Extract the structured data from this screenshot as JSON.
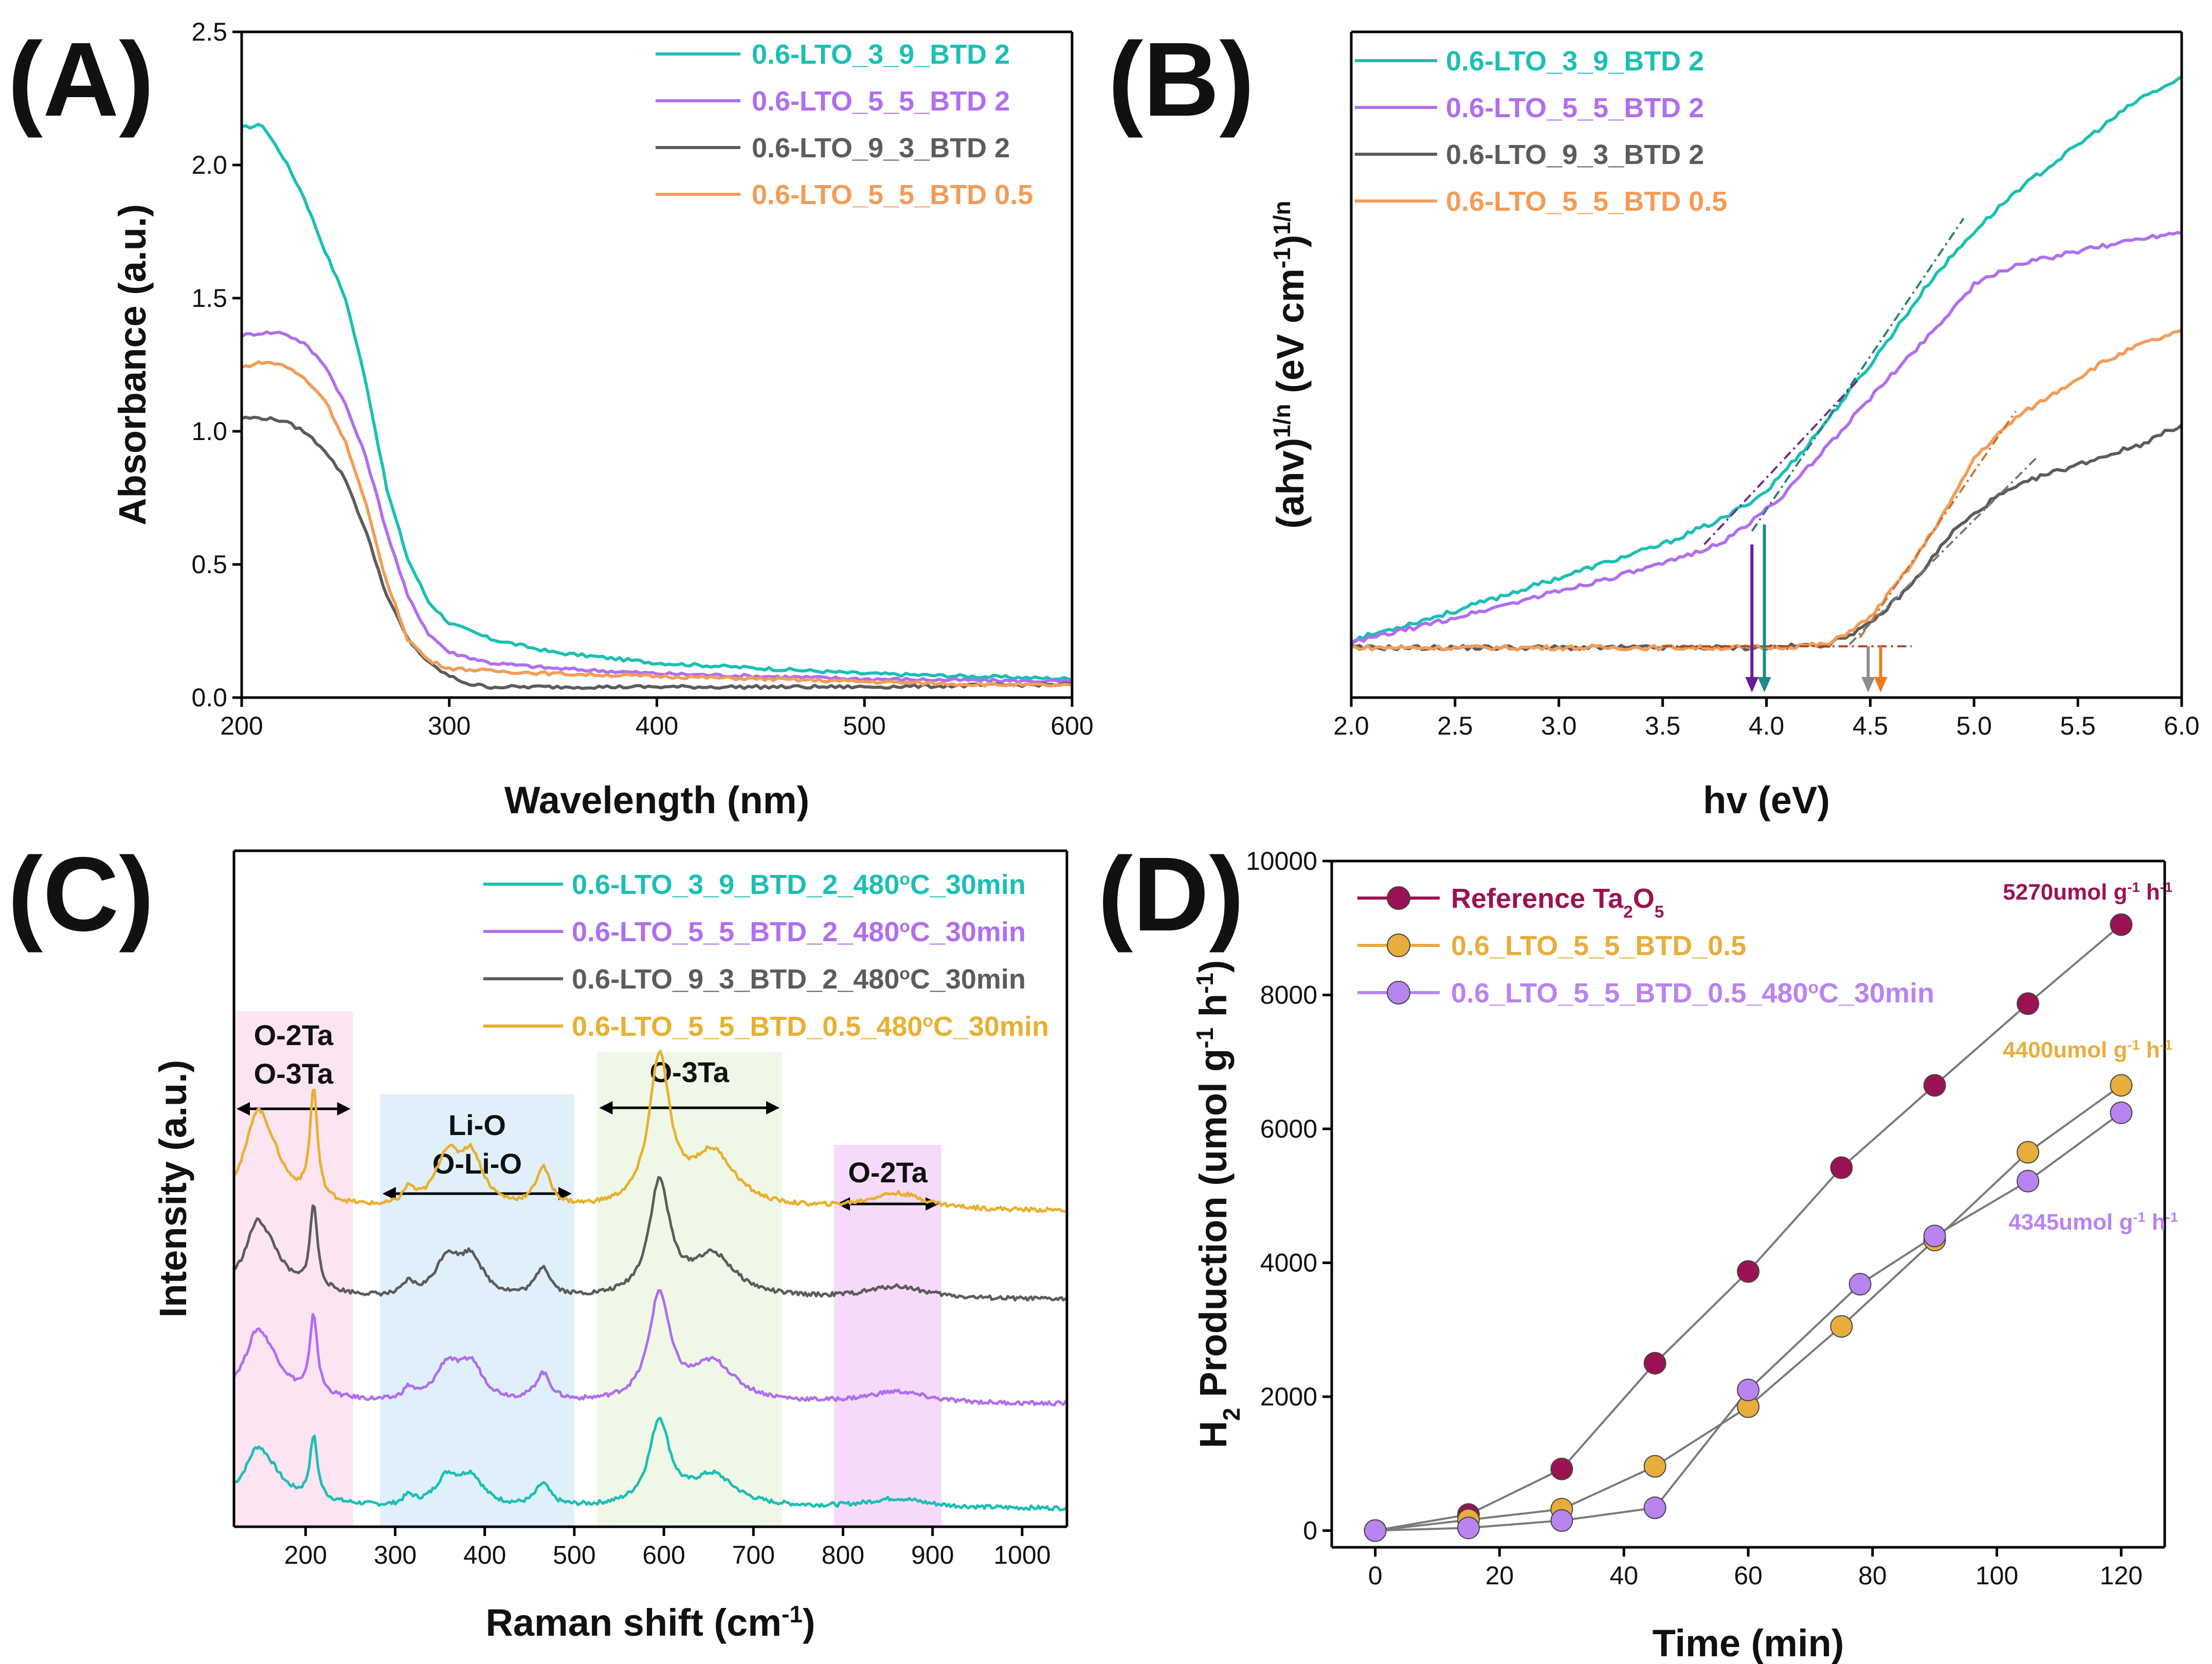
{
  "chart_data": [
    {
      "id": "A",
      "panel_label": "(A)",
      "type": "line",
      "xlabel": "Wavelength (nm)",
      "ylabel": "Absorbance (a.u.)",
      "xlim": [
        200,
        600
      ],
      "ylim": [
        0,
        2.5
      ],
      "xticks": [
        200,
        300,
        400,
        500,
        600
      ],
      "yticks": [
        0.0,
        0.5,
        1.0,
        1.5,
        2.0,
        2.5
      ],
      "xtick_labels": [
        "200",
        "300",
        "400",
        "500",
        "600"
      ],
      "ytick_labels": [
        "0.0",
        "0.5",
        "1.0",
        "1.5",
        "2.0",
        "2.5"
      ],
      "legend_position": "top-right",
      "series": [
        {
          "name": "0.6-LTO_3_9_BTD 2",
          "color": "#1cbfb4",
          "x": [
            200,
            210,
            220,
            230,
            240,
            250,
            260,
            270,
            280,
            290,
            300,
            320,
            350,
            400,
            450,
            500,
            550,
            600
          ],
          "y": [
            2.14,
            2.15,
            2.03,
            1.88,
            1.68,
            1.5,
            1.18,
            0.78,
            0.52,
            0.36,
            0.28,
            0.22,
            0.17,
            0.13,
            0.11,
            0.09,
            0.08,
            0.07
          ]
        },
        {
          "name": "0.6-LTO_5_5_BTD 2",
          "color": "#b06ef0",
          "x": [
            200,
            210,
            220,
            230,
            240,
            250,
            260,
            270,
            280,
            290,
            300,
            320,
            350,
            400,
            450,
            500,
            550,
            600
          ],
          "y": [
            1.36,
            1.37,
            1.37,
            1.33,
            1.25,
            1.1,
            0.9,
            0.62,
            0.38,
            0.24,
            0.17,
            0.13,
            0.11,
            0.09,
            0.08,
            0.07,
            0.065,
            0.06
          ]
        },
        {
          "name": "0.6-LTO_9_3_BTD 2",
          "color": "#5c5c5c",
          "x": [
            200,
            210,
            220,
            230,
            240,
            250,
            260,
            270,
            280,
            290,
            300,
            310,
            320,
            350,
            400,
            450,
            500,
            550,
            600
          ],
          "y": [
            1.05,
            1.05,
            1.04,
            1.0,
            0.93,
            0.82,
            0.62,
            0.38,
            0.22,
            0.13,
            0.08,
            0.05,
            0.04,
            0.04,
            0.04,
            0.04,
            0.04,
            0.045,
            0.05
          ]
        },
        {
          "name": "0.6-LTO_5_5_BTD 0.5",
          "color": "#f39c58",
          "x": [
            200,
            210,
            220,
            230,
            240,
            250,
            260,
            270,
            280,
            290,
            300,
            320,
            350,
            400,
            450,
            500,
            550,
            600
          ],
          "y": [
            1.24,
            1.26,
            1.25,
            1.2,
            1.12,
            0.96,
            0.72,
            0.43,
            0.22,
            0.14,
            0.11,
            0.1,
            0.09,
            0.08,
            0.07,
            0.06,
            0.05,
            0.045
          ]
        }
      ]
    },
    {
      "id": "B",
      "panel_label": "(B)",
      "type": "line",
      "xlabel": "hv (eV)",
      "ylabel": "(ahv)1/n (eV cm-1)1/n",
      "ylabel_parts": {
        "a": "(ahv)",
        "a_sup": "1/n",
        "b": " (eV cm",
        "b_sup": "-1",
        "c": ")",
        "c_sup": "1/n"
      },
      "xlim": [
        2.0,
        6.0
      ],
      "ylim": [
        0,
        1
      ],
      "xticks": [
        2.0,
        2.5,
        3.0,
        3.5,
        4.0,
        4.5,
        5.0,
        5.5,
        6.0
      ],
      "xtick_labels": [
        "2.0",
        "2.5",
        "3.0",
        "3.5",
        "4.0",
        "4.5",
        "5.0",
        "5.5",
        "6.0"
      ],
      "legend_position": "top-left",
      "band_gap_arrows_eV": [
        3.93,
        3.99,
        4.49,
        4.55
      ],
      "series": [
        {
          "name": "0.6-LTO_3_9_BTD 2",
          "color": "#1cbfb4",
          "x": [
            2.0,
            2.5,
            3.0,
            3.5,
            3.8,
            4.0,
            4.2,
            4.5,
            4.8,
            5.0,
            5.2,
            5.5,
            5.8,
            6.0
          ],
          "y": [
            0.086,
            0.13,
            0.18,
            0.23,
            0.27,
            0.31,
            0.38,
            0.5,
            0.63,
            0.7,
            0.76,
            0.83,
            0.9,
            0.93
          ]
        },
        {
          "name": "0.6-LTO_5_5_BTD 2",
          "color": "#b06ef0",
          "x": [
            2.0,
            2.5,
            3.0,
            3.5,
            3.8,
            3.95,
            4.1,
            4.3,
            4.5,
            4.8,
            5.0,
            5.2,
            5.5,
            5.8,
            6.0
          ],
          "y": [
            0.082,
            0.12,
            0.16,
            0.2,
            0.235,
            0.27,
            0.31,
            0.38,
            0.45,
            0.55,
            0.62,
            0.65,
            0.67,
            0.69,
            0.7
          ]
        },
        {
          "name": "0.6-LTO_9_3_BTD 2",
          "color": "#5c5c5c",
          "x": [
            2.0,
            3.0,
            4.0,
            4.3,
            4.5,
            4.7,
            4.9,
            5.1,
            5.3,
            5.5,
            5.8,
            6.0
          ],
          "y": [
            0.075,
            0.075,
            0.075,
            0.08,
            0.11,
            0.17,
            0.25,
            0.3,
            0.33,
            0.35,
            0.38,
            0.41
          ]
        },
        {
          "name": "0.6-LTO_5_5_BTD 0.5",
          "color": "#f39c58",
          "x": [
            2.0,
            3.0,
            4.0,
            4.3,
            4.5,
            4.7,
            4.9,
            5.0,
            5.2,
            5.4,
            5.6,
            5.8,
            6.0
          ],
          "y": [
            0.075,
            0.075,
            0.075,
            0.08,
            0.12,
            0.2,
            0.3,
            0.36,
            0.42,
            0.46,
            0.5,
            0.53,
            0.55
          ]
        }
      ]
    },
    {
      "id": "C",
      "panel_label": "(C)",
      "type": "line",
      "xlabel": "Raman shift (cm-1)",
      "xlabel_parts": {
        "a": "Raman shift (cm",
        "sup": "-1",
        "b": ")"
      },
      "ylabel": "Intensity (a.u.)",
      "xlim": [
        120,
        1050
      ],
      "ylim": [
        0,
        1
      ],
      "xticks": [
        200,
        300,
        400,
        500,
        600,
        700,
        800,
        900,
        1000
      ],
      "xtick_labels": [
        "200",
        "300",
        "400",
        "500",
        "600",
        "700",
        "800",
        "900",
        "1000"
      ],
      "legend_position": "top-right",
      "regions": [
        {
          "label_lines": [
            "O-2Ta",
            "O-3Ta"
          ],
          "x0": 120,
          "x1": 253,
          "color": "#fde4f2"
        },
        {
          "label_lines": [
            "Li-O",
            "O-Li-O"
          ],
          "x0": 283,
          "x1": 500,
          "color": "#dff0fb"
        },
        {
          "label_lines": [
            "O-3Ta"
          ],
          "x0": 525,
          "x1": 732,
          "color": "#eff8e7"
        },
        {
          "label_lines": [
            "O-2Ta"
          ],
          "x0": 790,
          "x1": 910,
          "color": "#f6dafa"
        }
      ],
      "series": [
        {
          "name": "0.6-LTO_3_9_BTD_2_480°C_30min",
          "name_parts": [
            "0.6-LTO_3_9_BTD_2_480",
            "o",
            "C_30min"
          ],
          "color": "#1cbfb4",
          "offset": 0.0,
          "scale": 0.6
        },
        {
          "name": "0.6-LTO_5_5_BTD_2_480°C_30min",
          "name_parts": [
            "0.6-LTO_5_5_BTD_2_480",
            "o",
            "C_30min"
          ],
          "color": "#b06ef0",
          "offset": 0.2,
          "scale": 0.75
        },
        {
          "name": "0.6-LTO_9_3_BTD_2_480°C_30min",
          "name_parts": [
            "0.6-LTO_9_3_BTD_2_480",
            "o",
            "C_30min"
          ],
          "color": "#5c5c5c",
          "offset": 0.4,
          "scale": 0.8
        },
        {
          "name": "0.6-LTO_5_5_BTD_0.5_480°C_30min",
          "name_parts": [
            "0.6-LTO_5_5_BTD_0.5_480",
            "o",
            "C_30min"
          ],
          "color": "#e8b030",
          "offset": 0.57,
          "scale": 1.05
        }
      ],
      "peaks_cm-1": [
        [
          145,
          0.12,
          15
        ],
        [
          160,
          0.07,
          20
        ],
        [
          209,
          0.2,
          5
        ],
        [
          315,
          0.03,
          8
        ],
        [
          358,
          0.09,
          16
        ],
        [
          385,
          0.09,
          16
        ],
        [
          465,
          0.07,
          10
        ],
        [
          595,
          0.27,
          14
        ],
        [
          655,
          0.1,
          30
        ],
        [
          860,
          0.03,
          40
        ]
      ]
    },
    {
      "id": "D",
      "panel_label": "(D)",
      "type": "line",
      "xlabel": "Time (min)",
      "ylabel": "H2 Production (umol g-1 h-1)",
      "ylabel_parts": {
        "a": "H",
        "a_sub": "2",
        "b": " Production (umol g",
        "b_sup": "-1",
        "c": " h",
        "c_sup": "-1",
        "d": ")"
      },
      "xlim": [
        -7,
        127
      ],
      "ylim": [
        -250,
        10000
      ],
      "xticks": [
        0,
        20,
        40,
        60,
        80,
        100,
        120
      ],
      "yticks": [
        0,
        2000,
        4000,
        6000,
        8000,
        10000
      ],
      "xtick_labels": [
        "0",
        "20",
        "40",
        "60",
        "80",
        "100",
        "120"
      ],
      "ytick_labels": [
        "0",
        "2000",
        "4000",
        "6000",
        "8000",
        "10000"
      ],
      "legend_position": "top-left",
      "series": [
        {
          "name": "Reference Ta2O5",
          "name_parts": [
            "Reference Ta",
            "2",
            "O",
            "5"
          ],
          "color": "#9b1254",
          "x": [
            0,
            15,
            30,
            45,
            60,
            75,
            90,
            105,
            120
          ],
          "y": [
            0,
            240,
            920,
            2500,
            3870,
            5420,
            6650,
            7870,
            9050
          ]
        },
        {
          "name": "0.6_LTO_5_5_BTD_0.5",
          "color": "#e8ad3c",
          "x": [
            0,
            15,
            30,
            45,
            60,
            75,
            90,
            105,
            120
          ],
          "y": [
            0,
            160,
            320,
            960,
            1850,
            3050,
            4340,
            5650,
            6650
          ]
        },
        {
          "name": "0.6_LTO_5_5_BTD_0.5_480°C_30min",
          "name_parts": [
            "0.6_LTO_5_5_BTD_0.5_480",
            "o",
            "C_30min"
          ],
          "color": "#b983f0",
          "x": [
            0,
            15,
            30,
            45,
            60,
            78,
            90,
            105,
            120
          ],
          "y": [
            0,
            40,
            150,
            340,
            2100,
            3680,
            4400,
            5220,
            6240
          ]
        }
      ],
      "annotations": [
        {
          "text_parts": [
            "5270umol g",
            "-1",
            " h",
            "-1"
          ],
          "color": "#9b1254"
        },
        {
          "text_parts": [
            "4400umol g",
            "-1",
            " h",
            "-1"
          ],
          "color": "#e8ad3c"
        },
        {
          "text_parts": [
            "4345umol g",
            "-1",
            " h",
            "-1"
          ],
          "color": "#b983f0"
        }
      ]
    }
  ]
}
